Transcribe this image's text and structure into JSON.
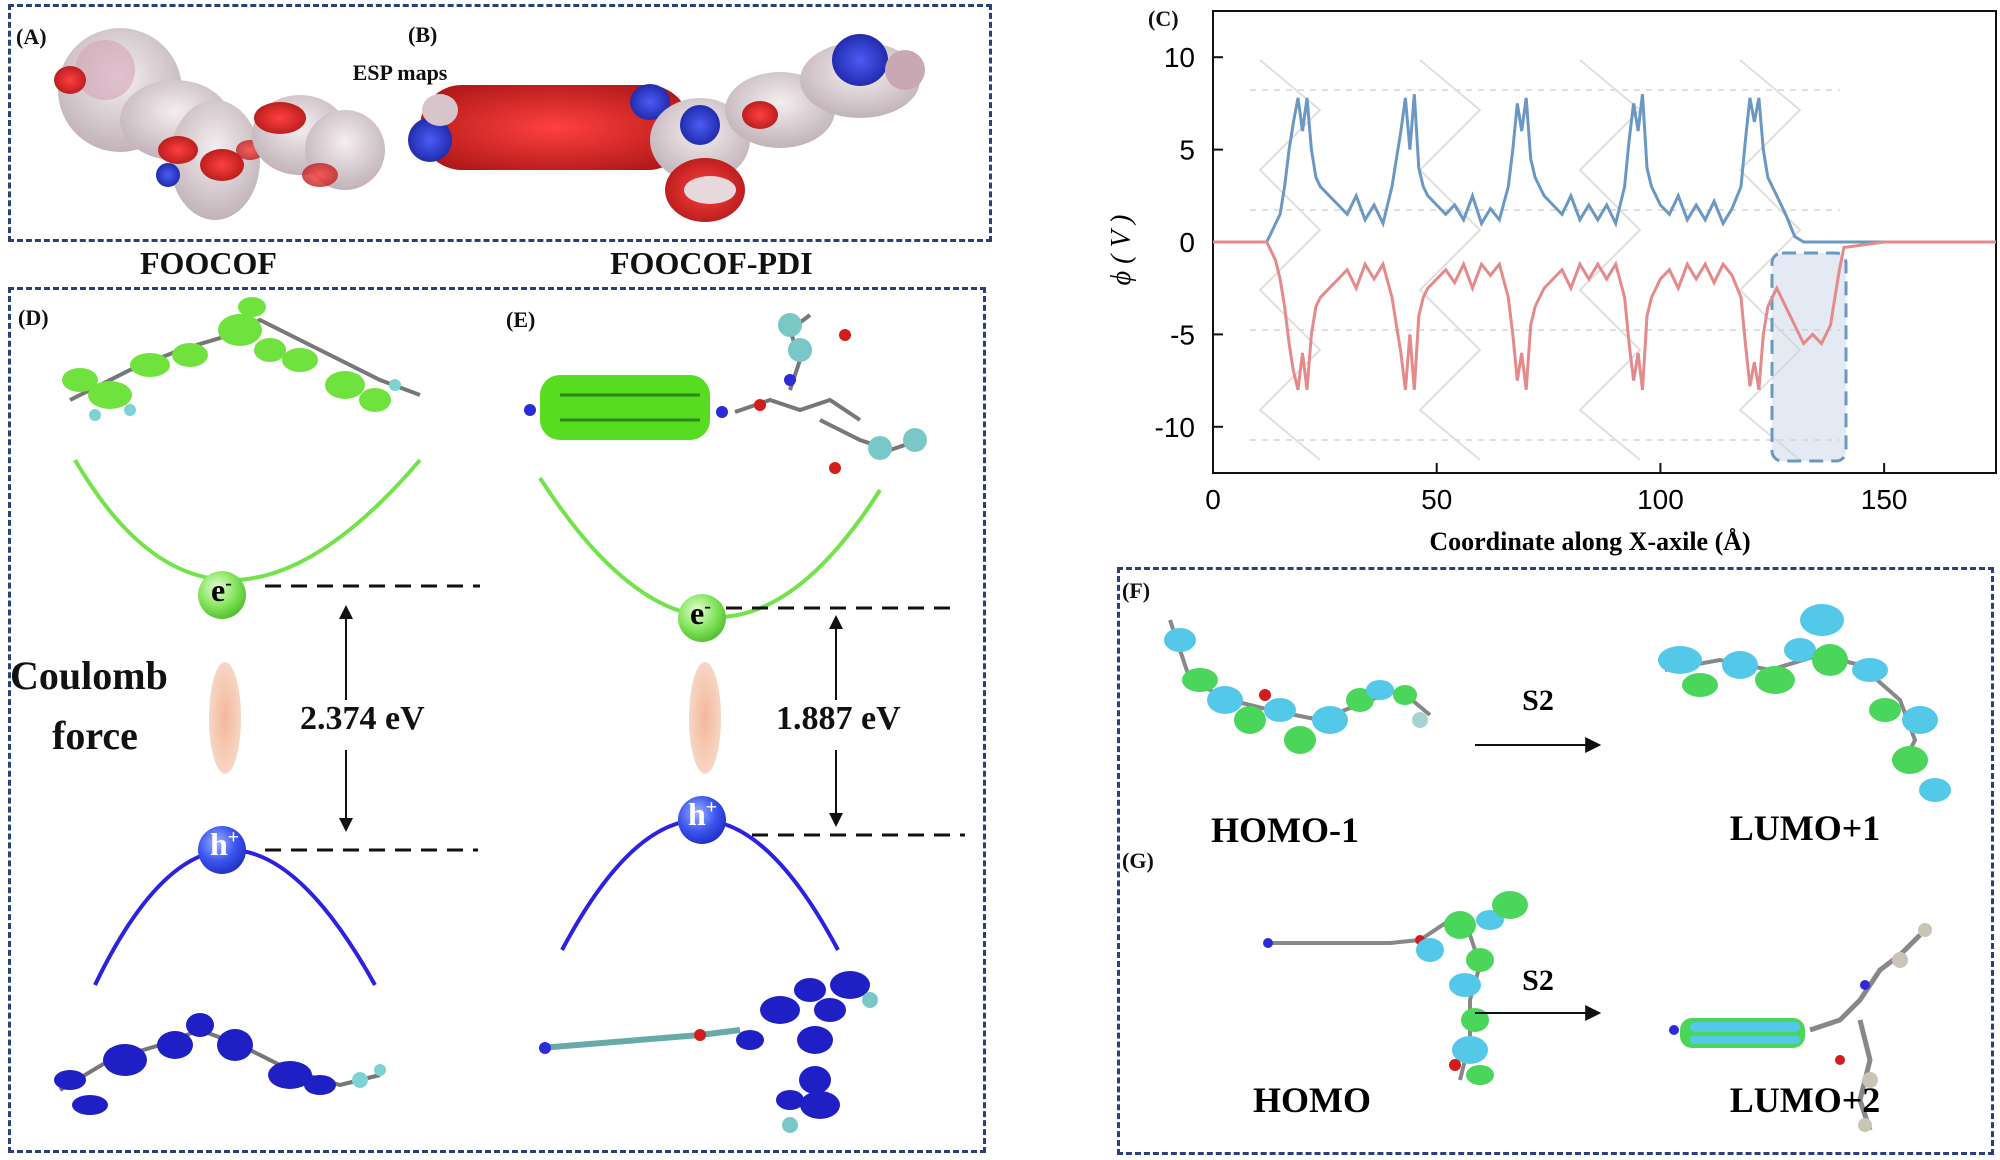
{
  "panels": {
    "A": "(A)",
    "B": "(B)",
    "C": "(C)",
    "D": "(D)",
    "E": "(E)",
    "F": "(F)",
    "G": "(G)"
  },
  "esp": {
    "caption": "ESP maps",
    "left_name": "FOOCOF",
    "right_name": "FOOCOF-PDI"
  },
  "energy_left": {
    "electron": "e",
    "electron_sup": "-",
    "hole": "h",
    "hole_sup": "+",
    "gap": "2.374 eV",
    "force_line1": "Coulomb",
    "force_line2": "force"
  },
  "energy_right": {
    "electron": "e",
    "electron_sup": "-",
    "hole": "h",
    "hole_sup": "+",
    "gap": "1.887 eV"
  },
  "orbitals_f": {
    "from": "HOMO-1",
    "to": "LUMO+1",
    "transition": "S2"
  },
  "orbitals_g": {
    "from": "HOMO",
    "to": "LUMO+2",
    "transition": "S2"
  },
  "colors": {
    "frame": "#2b3f7e",
    "blue_curve": "#6a98c3",
    "red_curve": "#e48a8a",
    "electron": "#7be35a",
    "hole": "#2f49e8"
  },
  "chart_data": {
    "type": "line",
    "xlabel": "Coordinate along X-axile (Å)",
    "ylabel": "ϕ ( V )",
    "xlim": [
      0,
      175
    ],
    "ylim": [
      -12.5,
      12.5
    ],
    "xticks": [
      0,
      50,
      100,
      150
    ],
    "yticks": [
      10,
      5,
      0,
      -5,
      -10
    ],
    "series": [
      {
        "x": [
          0,
          12,
          13,
          14,
          15,
          16,
          17,
          18,
          19,
          20,
          21,
          22,
          23,
          24,
          26,
          28,
          30,
          32,
          34,
          36,
          38,
          40,
          41,
          42,
          43,
          44,
          45,
          46,
          47,
          48,
          50,
          52,
          54,
          56,
          58,
          60,
          62,
          64,
          66,
          67,
          68,
          69,
          70,
          71,
          72,
          73,
          74,
          76,
          78,
          80,
          82,
          84,
          86,
          88,
          90,
          92,
          93,
          94,
          95,
          96,
          97,
          98,
          99,
          100,
          102,
          104,
          106,
          108,
          110,
          112,
          114,
          116,
          118,
          119,
          120,
          121,
          122,
          123,
          124,
          125,
          126,
          128,
          130,
          132,
          150,
          175
        ],
        "y": [
          0,
          0,
          0.5,
          1,
          1.5,
          3,
          5,
          6.5,
          7.8,
          6,
          7.8,
          5,
          3.5,
          3,
          2.5,
          2,
          1.5,
          2.5,
          1.2,
          2,
          1,
          3,
          4.5,
          6,
          7.8,
          5,
          8,
          4,
          3,
          2.5,
          2,
          1.5,
          2,
          1.2,
          2.5,
          1,
          1.8,
          1.2,
          3,
          5,
          7.5,
          6,
          7.8,
          4.5,
          3.5,
          3,
          2.5,
          2,
          1.5,
          2.5,
          1.2,
          2,
          1.2,
          2,
          1,
          3,
          5.5,
          7.5,
          6,
          8,
          4,
          3,
          2.5,
          2,
          1.5,
          2.5,
          1.2,
          2,
          1.2,
          2.2,
          1,
          1.8,
          3,
          5.5,
          7.8,
          6.5,
          7.8,
          5,
          3.5,
          3,
          2.5,
          1.5,
          0.3,
          0,
          0,
          0
        ]
      },
      {
        "x": [
          0,
          12,
          13,
          14,
          15,
          16,
          17,
          18,
          19,
          20,
          21,
          22,
          23,
          24,
          26,
          28,
          30,
          32,
          34,
          36,
          38,
          40,
          41,
          42,
          43,
          44,
          45,
          46,
          47,
          48,
          50,
          52,
          54,
          56,
          58,
          60,
          62,
          64,
          66,
          67,
          68,
          69,
          70,
          71,
          72,
          73,
          74,
          76,
          78,
          80,
          82,
          84,
          86,
          88,
          90,
          92,
          93,
          94,
          95,
          96,
          97,
          98,
          99,
          100,
          102,
          104,
          106,
          108,
          110,
          112,
          114,
          116,
          118,
          119,
          120,
          121,
          122,
          123,
          124,
          125,
          126,
          128,
          130,
          132,
          134,
          136,
          138,
          139,
          140,
          141,
          150,
          175
        ],
        "y": [
          0,
          0,
          -0.5,
          -1,
          -2,
          -3.5,
          -5.5,
          -7,
          -8,
          -6,
          -8,
          -5,
          -3.5,
          -3,
          -2.5,
          -2,
          -1.5,
          -2.5,
          -1.2,
          -2,
          -1.2,
          -3,
          -4.5,
          -6,
          -8,
          -5,
          -8,
          -4,
          -3,
          -2.5,
          -2,
          -1.5,
          -2.2,
          -1.2,
          -2.5,
          -1.2,
          -1.8,
          -1.2,
          -3,
          -5,
          -7.5,
          -6,
          -8,
          -4.5,
          -3.5,
          -3,
          -2.5,
          -2,
          -1.5,
          -2.5,
          -1.2,
          -2,
          -1.2,
          -2,
          -1.2,
          -3,
          -5.5,
          -7.5,
          -6,
          -8,
          -4,
          -3,
          -2.5,
          -2,
          -1.5,
          -2.5,
          -1.2,
          -2,
          -1.2,
          -2.2,
          -1.2,
          -1.8,
          -3,
          -5.5,
          -7.8,
          -6.5,
          -8,
          -5,
          -3.5,
          -3,
          -2.5,
          -3.5,
          -4.5,
          -5.5,
          -5,
          -5.5,
          -4.5,
          -3,
          -1.5,
          -0.3,
          0,
          0
        ]
      }
    ]
  }
}
